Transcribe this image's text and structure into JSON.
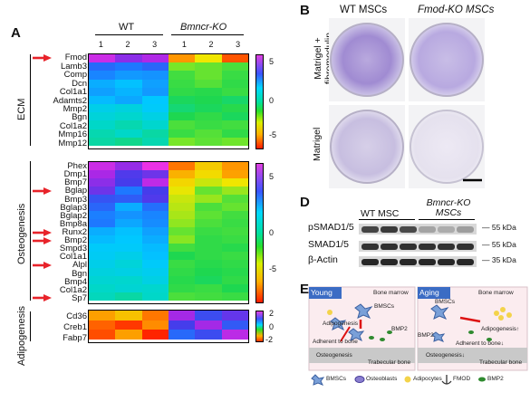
{
  "panels": {
    "a": "A",
    "b": "B",
    "d": "D",
    "e": "E"
  },
  "heatmap": {
    "groups": {
      "wt": "WT",
      "ko": "Bmncr-KO"
    },
    "cols": [
      "1",
      "2",
      "3",
      "1",
      "2",
      "3"
    ],
    "ecm": {
      "label": "ECM",
      "genes": [
        "Fmod",
        "Lamb3",
        "Comp",
        "Dcn",
        "Col1a1",
        "Adamts2",
        "Mmp2",
        "Bgn",
        "Col1a2",
        "Mmp16",
        "Mmp12"
      ],
      "arrows": [
        "Fmod"
      ],
      "ticks": [
        "5",
        "0",
        "-5"
      ],
      "values": [
        [
          6.0,
          5.2,
          5.6,
          -4.0,
          -2.5,
          -5.0
        ],
        [
          3.5,
          3.2,
          3.6,
          -1.0,
          -0.8,
          -0.5
        ],
        [
          3.0,
          2.7,
          2.8,
          -0.4,
          -0.8,
          -0.3
        ],
        [
          2.4,
          2.1,
          2.6,
          -0.3,
          -0.6,
          -0.2
        ],
        [
          2.6,
          2.3,
          2.7,
          -0.2,
          -0.1,
          -0.3
        ],
        [
          2.2,
          2.5,
          2.0,
          0.1,
          0.0,
          0.2
        ],
        [
          1.6,
          1.4,
          1.9,
          0.3,
          0.1,
          -0.1
        ],
        [
          1.3,
          1.1,
          1.5,
          0.0,
          -0.2,
          0.1
        ],
        [
          1.0,
          0.8,
          1.1,
          -0.5,
          -0.3,
          -0.4
        ],
        [
          0.8,
          1.0,
          0.7,
          -0.3,
          -0.6,
          -0.2
        ],
        [
          0.7,
          0.5,
          0.8,
          -1.0,
          -0.7,
          -0.9
        ]
      ]
    },
    "osteo": {
      "label": "Osteogenesis",
      "genes": [
        "Phex",
        "Dmp1",
        "Bmp7",
        "Bglap",
        "Bmp3",
        "Bglap3",
        "Bglap2",
        "Bmp8a",
        "Runx2",
        "Bmp2",
        "Smpd3",
        "Col1a1",
        "Alpl",
        "Bgn",
        "Bmp4",
        "Col1a2",
        "Sp7"
      ],
      "arrows": [
        "Bglap",
        "Runx2",
        "Bmp2",
        "Alpl",
        "Sp7"
      ],
      "ticks": [
        "5",
        "0",
        "-5"
      ],
      "values": [
        [
          6.0,
          5.3,
          6.5,
          -4.5,
          -3.0,
          -4.0
        ],
        [
          5.5,
          4.6,
          4.9,
          -3.5,
          -2.7,
          -3.8
        ],
        [
          5.2,
          4.5,
          5.8,
          -2.8,
          -2.0,
          -2.5
        ],
        [
          4.9,
          3.2,
          4.5,
          -2.4,
          -0.8,
          -1.4
        ],
        [
          4.0,
          3.8,
          4.6,
          -2.0,
          -1.4,
          -0.6
        ],
        [
          3.6,
          2.4,
          3.4,
          -1.8,
          -0.5,
          -0.8
        ],
        [
          3.1,
          2.8,
          3.0,
          -1.6,
          -0.7,
          -0.4
        ],
        [
          3.2,
          2.5,
          2.9,
          -1.3,
          -0.5,
          -0.3
        ],
        [
          2.4,
          2.1,
          2.6,
          -0.8,
          -0.3,
          -0.4
        ],
        [
          2.2,
          2.0,
          2.4,
          -1.2,
          -0.2,
          -0.3
        ],
        [
          1.9,
          1.9,
          2.2,
          -0.4,
          -0.2,
          -0.1
        ],
        [
          1.8,
          1.6,
          2.1,
          0.0,
          -0.2,
          -0.3
        ],
        [
          1.6,
          1.3,
          1.9,
          -0.3,
          -0.1,
          -0.2
        ],
        [
          1.4,
          1.5,
          1.7,
          -0.2,
          0.0,
          -0.1
        ],
        [
          1.2,
          1.1,
          1.5,
          -0.1,
          0.1,
          -0.2
        ],
        [
          1.0,
          1.2,
          1.1,
          -0.2,
          -0.3,
          0.0
        ],
        [
          0.9,
          0.7,
          1.0,
          -0.5,
          -0.4,
          -0.3
        ]
      ]
    },
    "adipo": {
      "label": "Adipogenesis",
      "genes": [
        "Cd36",
        "Creb1",
        "Fabp7"
      ],
      "ticks": [
        "2",
        "0",
        "-2"
      ],
      "values": [
        [
          -1.2,
          -1.0,
          -1.4,
          1.7,
          1.3,
          1.5
        ],
        [
          -1.5,
          -1.7,
          -1.3,
          1.4,
          1.7,
          1.2
        ],
        [
          -1.6,
          -1.2,
          -1.8,
          1.1,
          1.3,
          1.8
        ]
      ]
    }
  },
  "panelB": {
    "wt": "WT MSCs",
    "ko": "Fmod-KO MSCs",
    "row1": "Matrigel + fibromodulin",
    "row2": "Matrigel"
  },
  "panelD": {
    "wt": "WT MSC",
    "ko": "Bmncr-KO MSCs",
    "rows": [
      "pSMAD1/5",
      "SMAD1/5",
      "β-Actin"
    ],
    "kda": [
      "55 kDa",
      "55 kDa",
      "35 kDa"
    ],
    "intensity": [
      [
        0.75,
        0.8,
        0.72,
        0.25,
        0.2,
        0.28
      ],
      [
        0.85,
        0.85,
        0.85,
        0.85,
        0.85,
        0.85
      ],
      [
        0.9,
        0.9,
        0.9,
        0.9,
        0.9,
        0.9
      ]
    ]
  },
  "panelE": {
    "young": "Young",
    "aging": "Aging",
    "bone_marrow": "Bone marrow",
    "bmscs": "BMSCs",
    "adipogenesis": "Adipogenesis",
    "adipogenesis_up": "Adipogenesis↑",
    "bmp2": "BMP2",
    "adherent": "Adherent to bone",
    "adherent_down": "Adherent to bone↓",
    "osteogenesis": "Osteogenesis",
    "osteogenesis_down": "Osteogenesis↓",
    "trabecular": "Trabecular bone",
    "legend": [
      "BMSCs",
      "Osteoblasts",
      "Adipocytes",
      "FMOD",
      "BMP2"
    ]
  },
  "colors": {
    "arrow": "#e8232a",
    "young_header": "#3b6cc4",
    "aging_header": "#3b6cc4",
    "bone": "#c9c9c9",
    "bmsc": "#7aa0d8",
    "adipocyte": "#f3d34a",
    "bmp2": "#2f8a2f"
  }
}
